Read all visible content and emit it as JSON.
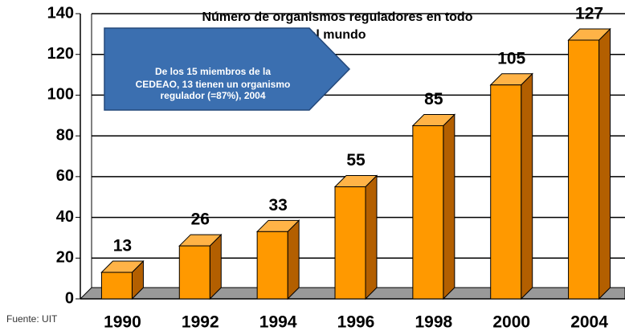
{
  "chart_data": {
    "type": "bar3d",
    "title": [
      "Número de organismos reguladores en todo",
      "el mundo"
    ],
    "annotation": [
      "De los 15 miembros de la",
      "CEDEAO, 13 tienen un organismo",
      "regulador (=87%), 2004"
    ],
    "source": "Fuente: UIT",
    "categories": [
      "1990",
      "1992",
      "1994",
      "1996",
      "1998",
      "2000",
      "2004"
    ],
    "values": [
      13,
      26,
      33,
      55,
      85,
      105,
      127
    ],
    "color": "#ff9900",
    "ylim": [
      0,
      140
    ],
    "yticks": [
      0,
      20,
      40,
      60,
      80,
      100,
      120,
      140
    ],
    "grid": true
  }
}
